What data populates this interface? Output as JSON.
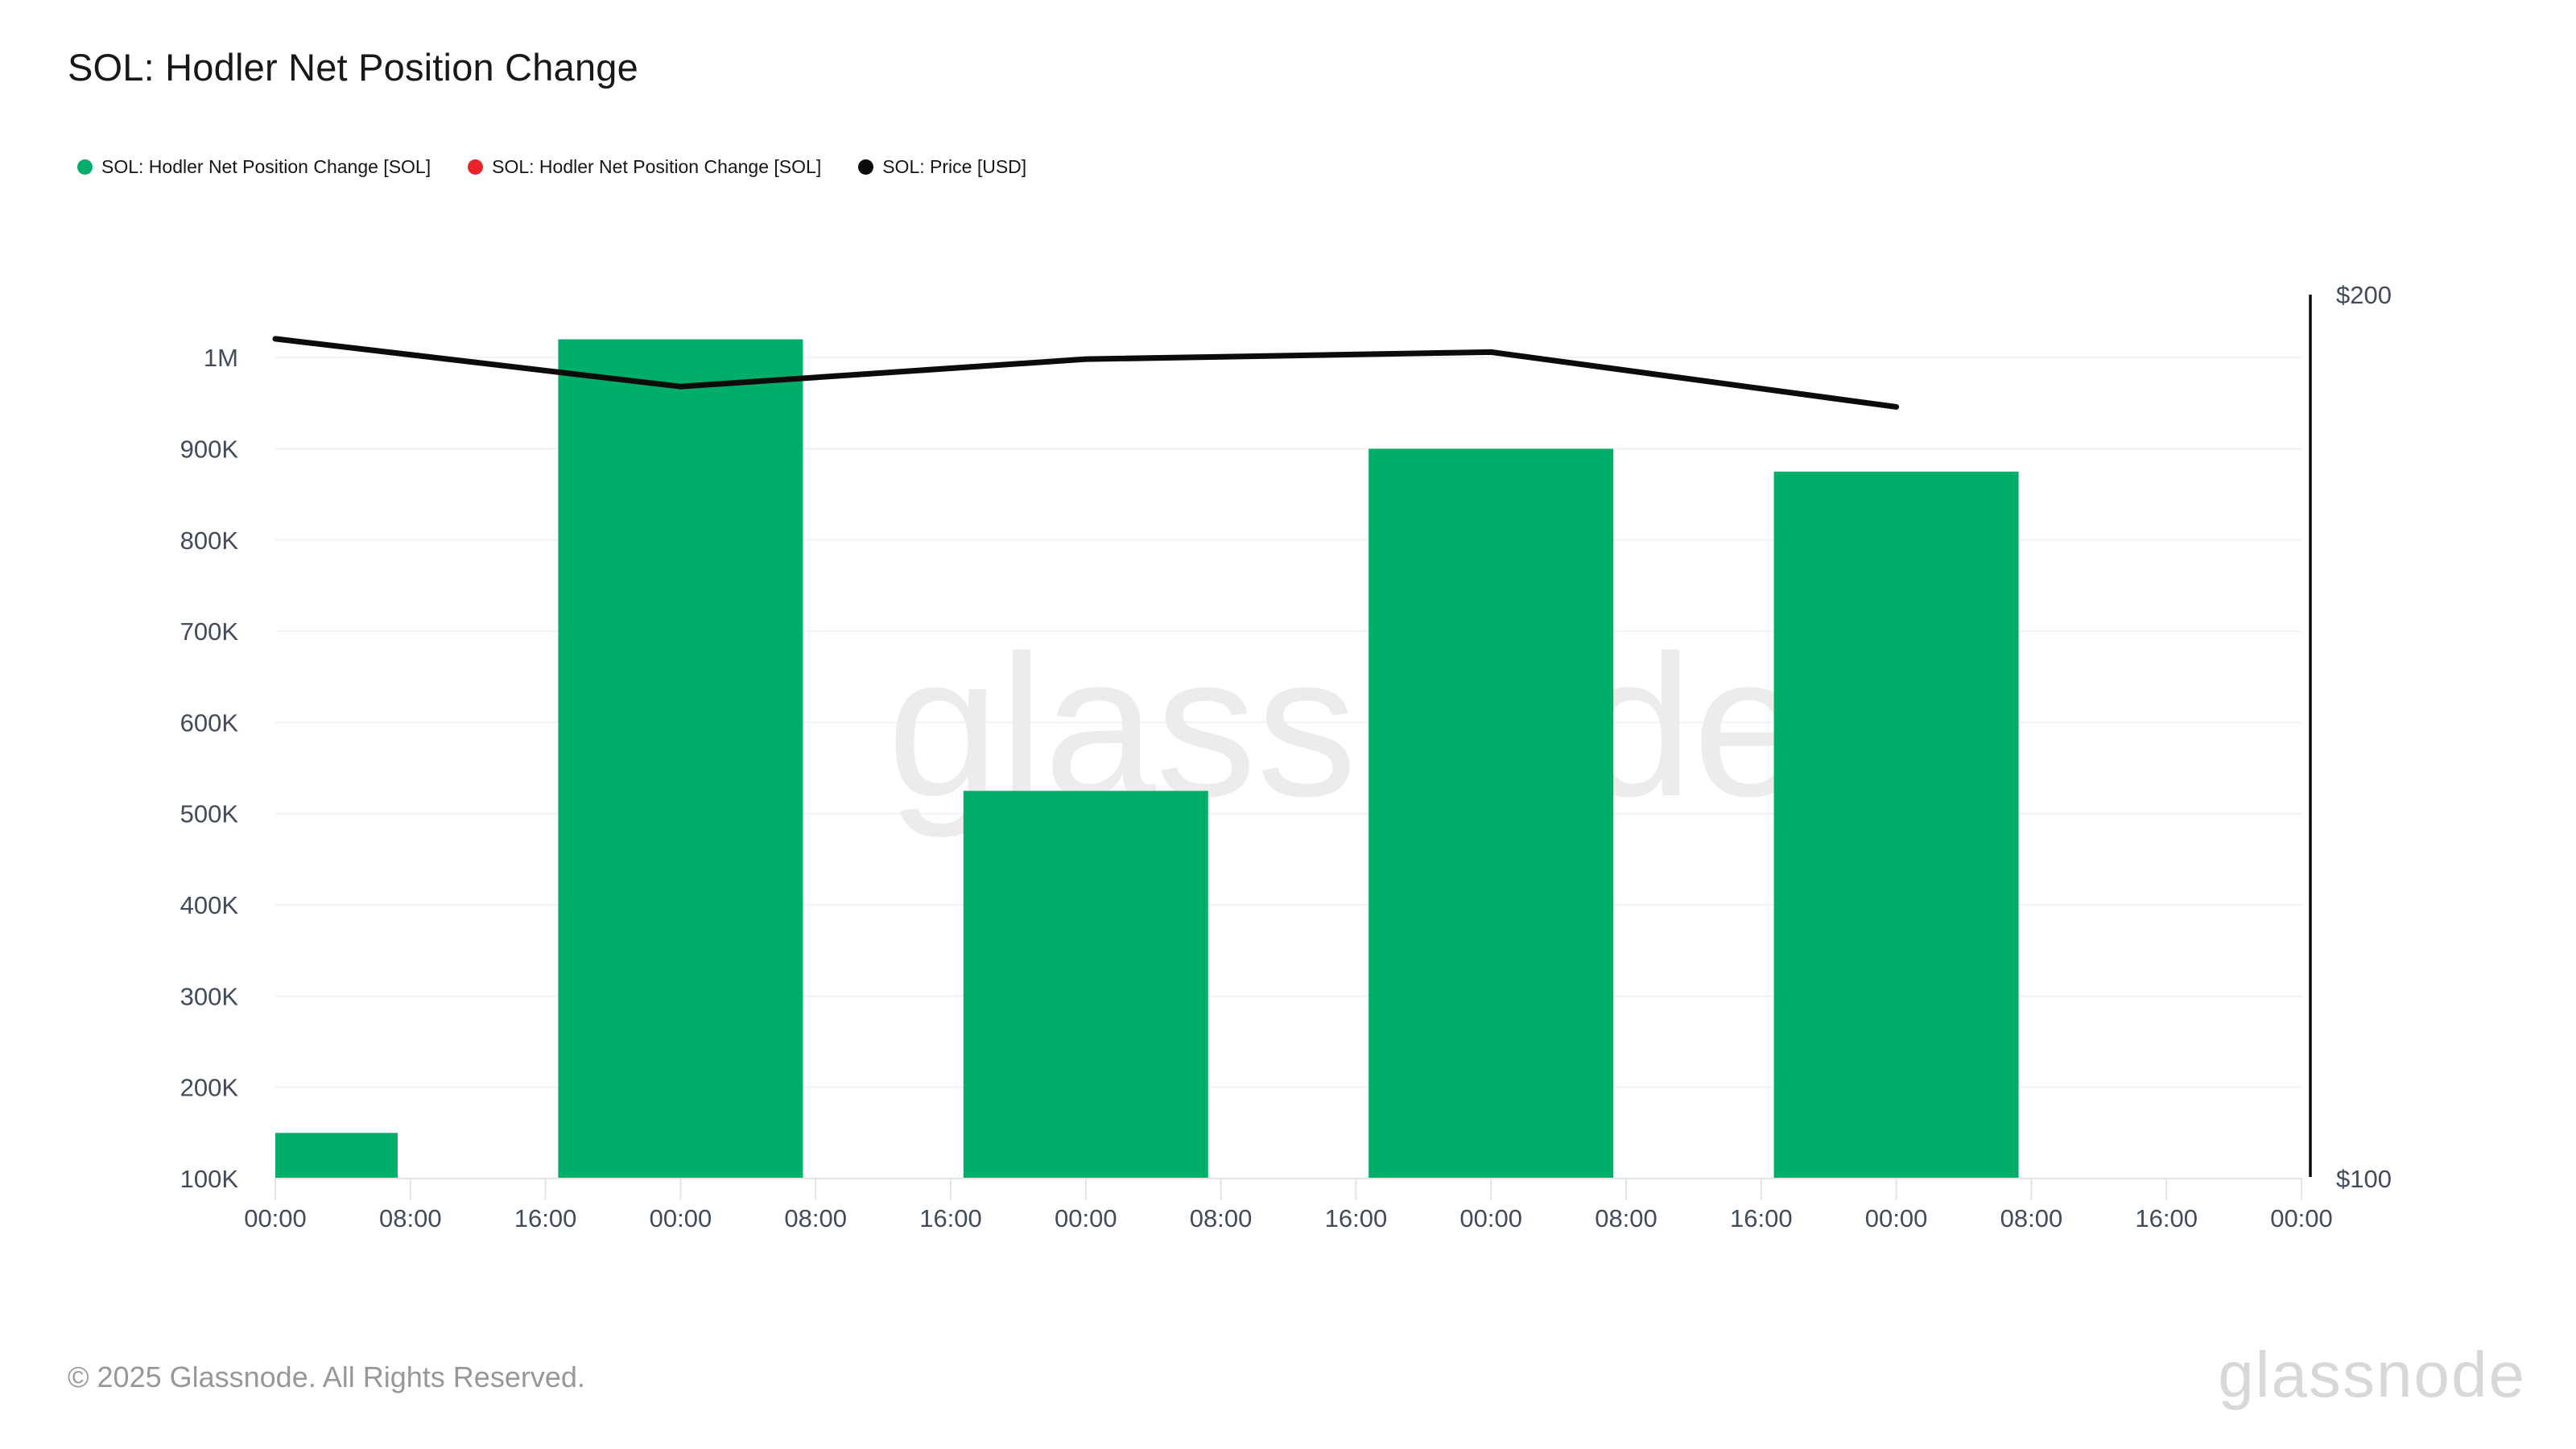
{
  "title": "SOL: Hodler Net Position Change",
  "legend": {
    "items": [
      {
        "label": "SOL: Hodler Net Position Change [SOL]",
        "color": "#00ae6a"
      },
      {
        "label": "SOL: Hodler Net Position Change [SOL]",
        "color": "#e8232a"
      },
      {
        "label": "SOL: Price [USD]",
        "color": "#0b0b0b"
      }
    ]
  },
  "watermark": "glassnode",
  "footer": {
    "copyright": "© 2025 Glassnode. All Rights Reserved.",
    "brand": "glassnode"
  },
  "chart_data": {
    "type": "bar+line",
    "title": "SOL: Hodler Net Position Change",
    "x_tick_labels": [
      "00:00",
      "08:00",
      "16:00",
      "00:00",
      "08:00",
      "16:00",
      "00:00",
      "08:00",
      "16:00",
      "00:00",
      "08:00",
      "16:00",
      "00:00",
      "08:00",
      "16:00",
      "00:00"
    ],
    "x_tick_interval_hours": 8,
    "series": [
      {
        "name": "SOL: Hodler Net Position Change [SOL]",
        "type": "bar",
        "axis": "left",
        "color": "#00ae6a",
        "x_indices": [
          0,
          3,
          6,
          9,
          12
        ],
        "values": [
          150000,
          1020000,
          525000,
          900000,
          875000
        ]
      },
      {
        "name": "SOL: Hodler Net Position Change [SOL]",
        "type": "bar",
        "axis": "left",
        "color": "#e8232a",
        "x_indices": [],
        "values": []
      },
      {
        "name": "SOL: Price [USD]",
        "type": "line",
        "axis": "right",
        "color": "#0b0b0b",
        "x_indices": [
          0,
          3,
          6,
          9,
          12
        ],
        "values": [
          195.0,
          189.6,
          192.7,
          193.5,
          187.3
        ]
      }
    ],
    "left_axis": {
      "range": [
        100000,
        1069000
      ],
      "ticks": [
        {
          "value": 100000,
          "label": "100K"
        },
        {
          "value": 200000,
          "label": "200K"
        },
        {
          "value": 300000,
          "label": "300K"
        },
        {
          "value": 400000,
          "label": "400K"
        },
        {
          "value": 500000,
          "label": "500K"
        },
        {
          "value": 600000,
          "label": "600K"
        },
        {
          "value": 700000,
          "label": "700K"
        },
        {
          "value": 800000,
          "label": "800K"
        },
        {
          "value": 900000,
          "label": "900K"
        },
        {
          "value": 1000000,
          "label": "1M"
        }
      ]
    },
    "right_axis": {
      "range": [
        100,
        200
      ],
      "ticks": [
        {
          "value": 100,
          "label": "$100"
        },
        {
          "value": 200,
          "label": "$200"
        }
      ]
    },
    "grid": "horizontal",
    "legend_position": "top-left",
    "colors": {
      "grid": "#f1f2f3",
      "axis_line": "#e3e4e6",
      "axis_text": "#424b5a",
      "watermark": "#ececed"
    }
  }
}
